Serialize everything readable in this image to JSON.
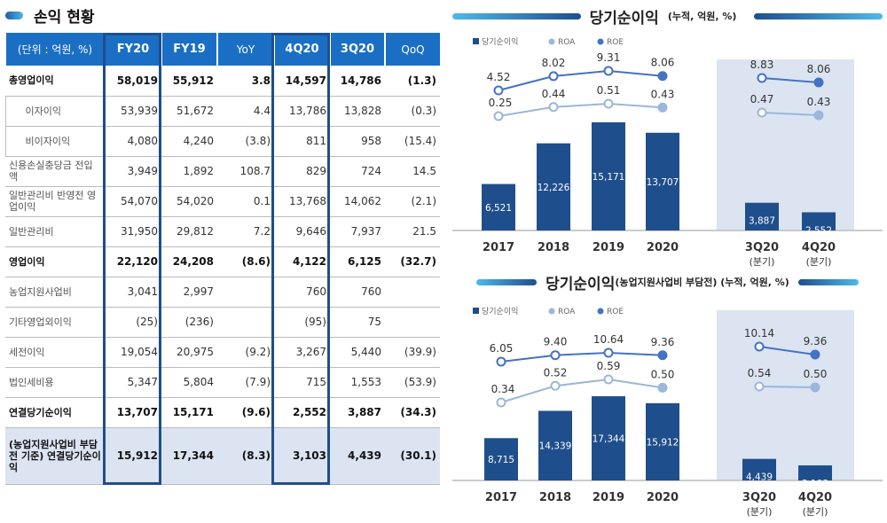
{
  "left": {
    "title": "손익 현황",
    "columns": [
      "(단위 : 억원, %)",
      "FY20",
      "FY19",
      "YoY",
      "4Q20",
      "3Q20",
      "QoQ"
    ],
    "rows": [
      {
        "label": "총영업이익",
        "bold": true,
        "values": [
          "58,019",
          "55,912",
          "3.8",
          "14,597",
          "14,786",
          "(1.3)"
        ]
      },
      {
        "label": "이자이익",
        "sub": true,
        "values": [
          "53,939",
          "51,672",
          "4.4",
          "13,786",
          "13,828",
          "(0.3)"
        ]
      },
      {
        "label": "비이자이익",
        "sub": true,
        "values": [
          "4,080",
          "4,240",
          "(3.8)",
          "811",
          "958",
          "(15.4)"
        ]
      },
      {
        "label": "신용손실충당금 전입액",
        "values": [
          "3,949",
          "1,892",
          "108.7",
          "829",
          "724",
          "14.5"
        ]
      },
      {
        "label": "일반관리비 반영전 영업이익",
        "values": [
          "54,070",
          "54,020",
          "0.1",
          "13,768",
          "14,062",
          "(2.1)"
        ]
      },
      {
        "label": "일반관리비",
        "values": [
          "31,950",
          "29,812",
          "7.2",
          "9,646",
          "7,937",
          "21.5"
        ]
      },
      {
        "label": "영업이익",
        "bold": true,
        "values": [
          "22,120",
          "24,208",
          "(8.6)",
          "4,122",
          "6,125",
          "(32.7)"
        ]
      },
      {
        "label": "농업지원사업비",
        "values": [
          "3,041",
          "2,997",
          "",
          "760",
          "760",
          ""
        ]
      },
      {
        "label": "기타영업외이익",
        "values": [
          "(25)",
          "(236)",
          "",
          "(95)",
          "75",
          ""
        ]
      },
      {
        "label": "세전이익",
        "values": [
          "19,054",
          "20,975",
          "(9.2)",
          "3,267",
          "5,440",
          "(39.9)"
        ]
      },
      {
        "label": "법인세비용",
        "values": [
          "5,347",
          "5,804",
          "(7.9)",
          "715",
          "1,553",
          "(53.9)"
        ]
      },
      {
        "label": "연결당기순이익",
        "bold": true,
        "values": [
          "13,707",
          "15,171",
          "(9.6)",
          "2,552",
          "3,887",
          "(34.3)"
        ]
      },
      {
        "label": "(농업지원사업비 부담전 기준) 연결당기순이익",
        "bold": true,
        "highlight": true,
        "values": [
          "15,912",
          "17,344",
          "(8.3)",
          "3,103",
          "4,439",
          "(30.1)"
        ]
      }
    ]
  },
  "colors": {
    "header": "#1a6fc4",
    "bar": "#1f4e8c",
    "roe": "#4472c4",
    "roa": "#9bb7d9",
    "panel": "#dce4f2"
  },
  "chart_data": [
    {
      "type": "bar+line",
      "title": "당기순이익",
      "subtitle": "(누적, 억원, %)",
      "legend": [
        "당기순이익",
        "ROA",
        "ROE"
      ],
      "legend_position": "top-left",
      "categories": [
        "2017",
        "2018",
        "2019",
        "2020",
        "3Q20",
        "4Q20"
      ],
      "category_sublabels": [
        "",
        "",
        "",
        "",
        "(분기)",
        "(분기)"
      ],
      "series": [
        {
          "name": "당기순이익",
          "type": "bar",
          "values": [
            6521,
            12226,
            15171,
            13707,
            3887,
            2552
          ],
          "labels": [
            "6,521",
            "12,226",
            "15,171",
            "13,707",
            "3,887",
            "2,552"
          ]
        },
        {
          "name": "ROA",
          "type": "line",
          "values": [
            0.25,
            0.44,
            0.51,
            0.43,
            0.47,
            0.43
          ],
          "labels": [
            "0.25",
            "0.44",
            "0.51",
            "0.43",
            "0.47",
            "0.43"
          ]
        },
        {
          "name": "ROE",
          "type": "line",
          "values": [
            4.52,
            8.02,
            9.31,
            8.06,
            8.83,
            8.06
          ],
          "labels": [
            "4.52",
            "8.02",
            "9.31",
            "8.06",
            "8.83",
            "8.06"
          ]
        }
      ]
    },
    {
      "type": "bar+line",
      "title": "당기순이익",
      "subtitle": "(농업지원사업비 부담전) (누적, 억원, %)",
      "legend": [
        "당기순이익",
        "ROA",
        "ROE"
      ],
      "legend_position": "top-left",
      "categories": [
        "2017",
        "2018",
        "2019",
        "2020",
        "3Q20",
        "4Q20"
      ],
      "category_sublabels": [
        "",
        "",
        "",
        "",
        "(분기)",
        "(분기)"
      ],
      "series": [
        {
          "name": "당기순이익",
          "type": "bar",
          "values": [
            8715,
            14339,
            17344,
            15912,
            4439,
            3103
          ],
          "labels": [
            "8,715",
            "14,339",
            "17,344",
            "15,912",
            "4,439",
            "3,103"
          ]
        },
        {
          "name": "ROA",
          "type": "line",
          "values": [
            0.34,
            0.52,
            0.59,
            0.5,
            0.54,
            0.5
          ],
          "labels": [
            "0.34",
            "0.52",
            "0.59",
            "0.50",
            "0.54",
            "0.50"
          ]
        },
        {
          "name": "ROE",
          "type": "line",
          "values": [
            6.05,
            9.4,
            10.64,
            9.36,
            10.14,
            9.36
          ],
          "labels": [
            "6.05",
            "9.40",
            "10.64",
            "9.36",
            "10.14",
            "9.36"
          ]
        }
      ]
    }
  ]
}
